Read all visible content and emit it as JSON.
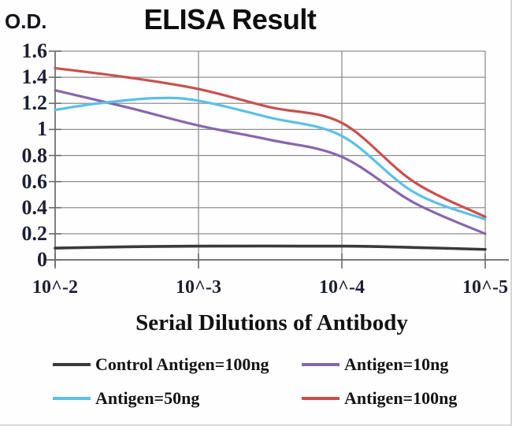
{
  "figure": {
    "title": "ELISA Result",
    "od_label": "O.D.",
    "x_axis_label": "Serial Dilutions of Antibody"
  },
  "chart_data": {
    "type": "line",
    "title": "ELISA Result",
    "ylabel": "O.D.",
    "xlabel": "Serial Dilutions of Antibody",
    "x_tick_labels": [
      "10^-2",
      "10^-3",
      "10^-4",
      "10^-5"
    ],
    "x_decades": [
      0,
      1,
      2,
      3
    ],
    "ylim": [
      0,
      1.6
    ],
    "y_ticks": [
      0,
      0.2,
      0.4,
      0.6,
      0.8,
      1,
      1.2,
      1.4,
      1.6
    ],
    "y_tick_labels": [
      "0",
      "0.2",
      "0.4",
      "0.6",
      "0.8",
      "1",
      "1.2",
      "1.4",
      "1.6"
    ],
    "grid": true,
    "legend_position": "bottom",
    "colors": {
      "grid": "#8f8f8f",
      "axis": "#6a6a6a",
      "tick_text": "#1d1d35"
    },
    "series": [
      {
        "name": "Control Antigen=100ng",
        "color": "#3a3a3a",
        "points": [
          [
            0,
            0.09
          ],
          [
            0.5,
            0.1
          ],
          [
            1,
            0.105
          ],
          [
            2,
            0.105
          ],
          [
            2.5,
            0.095
          ],
          [
            3,
            0.08
          ]
        ]
      },
      {
        "name": "Antigen=10ng",
        "color": "#8766ab",
        "points": [
          [
            0,
            1.3
          ],
          [
            0.5,
            1.17
          ],
          [
            1,
            1.03
          ],
          [
            1.5,
            0.92
          ],
          [
            2,
            0.79
          ],
          [
            2.5,
            0.44
          ],
          [
            3,
            0.2
          ]
        ]
      },
      {
        "name": "Antigen=50ng",
        "color": "#5cc0e6",
        "points": [
          [
            0,
            1.15
          ],
          [
            0.3,
            1.2
          ],
          [
            0.7,
            1.24
          ],
          [
            1,
            1.22
          ],
          [
            1.5,
            1.09
          ],
          [
            2,
            0.95
          ],
          [
            2.5,
            0.52
          ],
          [
            3,
            0.31
          ]
        ]
      },
      {
        "name": "Antigen=100ng",
        "color": "#c9504e",
        "points": [
          [
            0,
            1.47
          ],
          [
            0.5,
            1.4
          ],
          [
            1,
            1.31
          ],
          [
            1.5,
            1.17
          ],
          [
            2,
            1.05
          ],
          [
            2.5,
            0.6
          ],
          [
            3,
            0.33
          ]
        ]
      }
    ]
  }
}
